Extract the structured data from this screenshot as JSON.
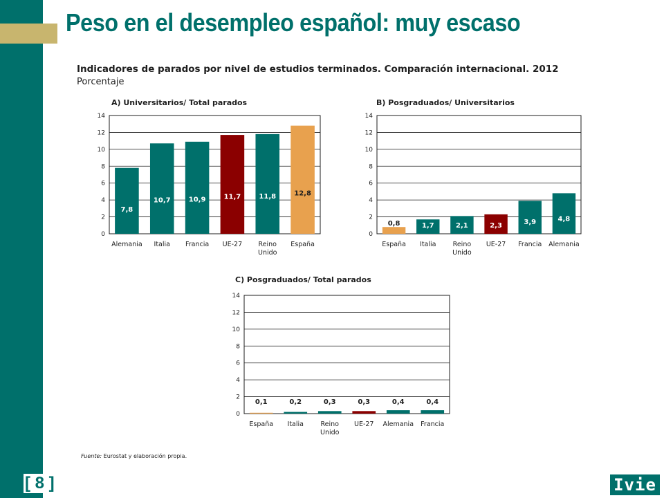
{
  "page_title": "Peso en el desempleo español: muy escaso",
  "subtitle": "Indicadores de parados por nivel de estudios terminados. Comparación internacional. 2012",
  "units": "Porcentaje",
  "source_label": "Fuente:",
  "source_text": "Eurostat y elaboración propia.",
  "page_number": "[ 8 ]",
  "logo_text": "Ivie",
  "colors": {
    "teal": "#00706b",
    "highlight_spain": "#e8a14e",
    "highlight_eu": "#8b0000",
    "gold_accent": "#c8b56e"
  },
  "chart_data": [
    {
      "type": "bar",
      "title": "A) Universitarios/ Total parados",
      "categories": [
        "Alemania",
        "Italia",
        "Francia",
        "UE-27",
        "Reino Unido",
        "España"
      ],
      "values": [
        7.8,
        10.7,
        10.9,
        11.7,
        11.8,
        12.8
      ],
      "labels": [
        "7,8",
        "10,7",
        "10,9",
        "11,7",
        "11,8",
        "12,8"
      ],
      "bar_colors": [
        "teal",
        "teal",
        "teal",
        "eu",
        "teal",
        "spain"
      ],
      "ylim": [
        0,
        14
      ],
      "yticks": [
        0,
        2,
        4,
        6,
        8,
        10,
        12,
        14
      ],
      "grid": true
    },
    {
      "type": "bar",
      "title": "B) Posgraduados/ Universitarios",
      "categories": [
        "España",
        "Italia",
        "Reino Unido",
        "UE-27",
        "Francia",
        "Alemania"
      ],
      "values": [
        0.8,
        1.7,
        2.1,
        2.3,
        3.9,
        4.8
      ],
      "labels": [
        "0,8",
        "1,7",
        "2,1",
        "2,3",
        "3,9",
        "4,8"
      ],
      "bar_colors": [
        "spain",
        "teal",
        "teal",
        "eu",
        "teal",
        "teal"
      ],
      "ylim": [
        0,
        14
      ],
      "yticks": [
        0,
        2,
        4,
        6,
        8,
        10,
        12,
        14
      ],
      "grid": true
    },
    {
      "type": "bar",
      "title": "C) Posgraduados/ Total parados",
      "categories": [
        "España",
        "Italia",
        "Reino Unido",
        "UE-27",
        "Alemania",
        "Francia"
      ],
      "values": [
        0.1,
        0.2,
        0.3,
        0.3,
        0.4,
        0.4
      ],
      "labels": [
        "0,1",
        "0,2",
        "0,3",
        "0,3",
        "0,4",
        "0,4"
      ],
      "bar_colors": [
        "spain",
        "teal",
        "teal",
        "eu",
        "teal",
        "teal"
      ],
      "ylim": [
        0,
        14
      ],
      "yticks": [
        0,
        2,
        4,
        6,
        8,
        10,
        12,
        14
      ],
      "grid": true
    }
  ]
}
